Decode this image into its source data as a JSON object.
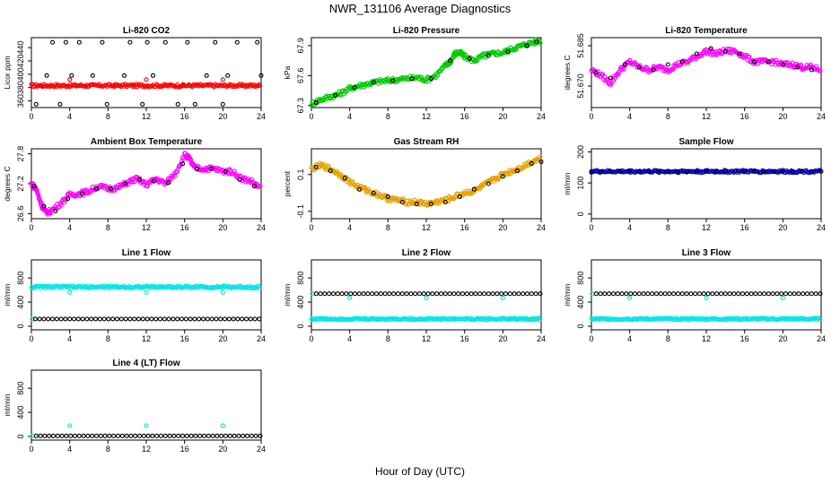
{
  "figure": {
    "title": "NWR_131106  Average Diagnostics",
    "xlabel": "Hour of Day (UTC)"
  },
  "chart_data": [
    {
      "type": "scatter",
      "title": "Li-820 CO2",
      "ylabel": "Licor ppm",
      "xlim": [
        0,
        24
      ],
      "ylim": [
        350,
        455
      ],
      "xticks": [
        "0",
        "4",
        "8",
        "12",
        "16",
        "20",
        "24"
      ],
      "yticks": [
        360,
        380,
        400,
        420,
        440
      ],
      "series": [
        {
          "color": "#000000",
          "x": [
            0.5,
            1.0,
            1.6,
            2.2,
            3.0,
            3.6,
            4.2,
            5.0,
            6.4,
            7.4,
            7.9,
            8.6,
            9.7,
            10.3,
            11.6,
            12.1,
            12.7,
            14.0,
            15.3,
            15.8,
            16.3,
            17.1,
            18.3,
            19.2,
            20.0,
            20.5,
            21.5,
            22.0,
            23.6,
            24.0
          ],
          "y": [
            355,
            383,
            398,
            448,
            355,
            448,
            398,
            448,
            398,
            448,
            355,
            383,
            398,
            448,
            355,
            448,
            398,
            448,
            355,
            383,
            448,
            355,
            398,
            448,
            355,
            398,
            448,
            383,
            448,
            398
          ]
        },
        {
          "color": "#ff0000",
          "x": [
            4.0,
            12.0,
            20.0
          ],
          "y": [
            392,
            392,
            392
          ]
        },
        {
          "color": "#ff0000",
          "x_range": [
            0,
            24
          ],
          "level": 383,
          "band": 2
        }
      ]
    },
    {
      "type": "scatter",
      "title": "Li-820 Pressure",
      "ylabel": "kPa",
      "xlim": [
        0,
        24
      ],
      "ylim": [
        67.28,
        67.98
      ],
      "xticks": [
        "0",
        "4",
        "8",
        "12",
        "16",
        "20",
        "24"
      ],
      "yticks": [
        67.3,
        67.6,
        67.9
      ],
      "series": [
        {
          "color": "#00cc00",
          "x": [
            0,
            1,
            2,
            3,
            4,
            5,
            6,
            7,
            8,
            9,
            10,
            11,
            12,
            13,
            14,
            14.5,
            15,
            15.5,
            16,
            17,
            18,
            19,
            20,
            21,
            22,
            23,
            24
          ],
          "y": [
            67.32,
            67.36,
            67.39,
            67.42,
            67.47,
            67.5,
            67.52,
            67.54,
            67.55,
            67.56,
            67.57,
            67.58,
            67.56,
            67.6,
            67.7,
            67.74,
            67.82,
            67.83,
            67.79,
            67.75,
            67.8,
            67.82,
            67.83,
            67.87,
            67.9,
            67.93,
            67.95
          ]
        },
        {
          "color": "#000000",
          "x": [
            0.5,
            2.5,
            4.5,
            6.5,
            8.5,
            10.5,
            12.5,
            14.5,
            16.5,
            18.5,
            20.5,
            22.5,
            23.5
          ],
          "y": [
            67.33,
            67.4,
            67.48,
            67.53,
            67.55,
            67.57,
            67.57,
            67.75,
            67.77,
            67.8,
            67.84,
            67.9,
            67.94
          ]
        }
      ]
    },
    {
      "type": "scatter",
      "title": "Li-820 Temperature",
      "ylabel": "degrees C",
      "xlim": [
        0,
        24
      ],
      "ylim": [
        51.662,
        51.688
      ],
      "xticks": [
        "0",
        "4",
        "8",
        "12",
        "16",
        "20",
        "24"
      ],
      "yticks": [
        51.67,
        51.685
      ],
      "ytick_labels": [
        "51.670",
        "51.685"
      ],
      "series": [
        {
          "color": "#ff00ff",
          "x": [
            0,
            1,
            2,
            3,
            4,
            5,
            6,
            7,
            8,
            9,
            10,
            11,
            12,
            13,
            14,
            15,
            16,
            17,
            18,
            19,
            20,
            21,
            22,
            23,
            24
          ],
          "y": [
            51.676,
            51.674,
            51.671,
            51.676,
            51.679,
            51.677,
            51.676,
            51.677,
            51.676,
            51.678,
            51.679,
            51.681,
            51.683,
            51.682,
            51.683,
            51.683,
            51.681,
            51.679,
            51.679,
            51.679,
            51.678,
            51.678,
            51.677,
            51.677,
            51.676
          ]
        },
        {
          "color": "#000000",
          "x": [
            0.5,
            2,
            3.5,
            5,
            6.5,
            8,
            9.5,
            11,
            12.5,
            14,
            15.5,
            17,
            18.5,
            20,
            21.5,
            23
          ],
          "y": [
            51.675,
            51.673,
            51.678,
            51.677,
            51.676,
            51.678,
            51.679,
            51.682,
            51.684,
            51.683,
            51.682,
            51.679,
            51.679,
            51.678,
            51.677,
            51.676
          ]
        }
      ]
    },
    {
      "type": "scatter",
      "title": "Ambient Box Temperature",
      "ylabel": "degrees C",
      "xlim": [
        0,
        24
      ],
      "ylim": [
        26.5,
        27.9
      ],
      "xticks": [
        "0",
        "4",
        "8",
        "12",
        "16",
        "20",
        "24"
      ],
      "yticks": [
        26.6,
        27.2,
        27.8
      ],
      "ytick_labels": [
        "26.6",
        "27.2",
        "27.8"
      ],
      "series": [
        {
          "color": "#ff00ff",
          "x": [
            0,
            0.5,
            1,
            1.5,
            2,
            3,
            4,
            5,
            6,
            7,
            8,
            9,
            10,
            11,
            12,
            13,
            14,
            15,
            16,
            16.5,
            17,
            18,
            19,
            20,
            21,
            22,
            23,
            24
          ],
          "y": [
            27.2,
            27.1,
            26.8,
            26.62,
            26.65,
            26.8,
            26.98,
            27.0,
            27.05,
            27.15,
            27.1,
            27.12,
            27.22,
            27.3,
            27.18,
            27.3,
            27.2,
            27.4,
            27.78,
            27.7,
            27.52,
            27.5,
            27.5,
            27.45,
            27.44,
            27.3,
            27.25,
            27.1
          ]
        },
        {
          "color": "#000000",
          "x": [
            0.3,
            1.3,
            2.5,
            3.8,
            5.3,
            6.8,
            8.3,
            9.8,
            11.3,
            12.8,
            14.3,
            15.8,
            17.3,
            18.8,
            20.3,
            21.8,
            23.3
          ],
          "y": [
            27.15,
            26.75,
            26.65,
            26.9,
            27.0,
            27.1,
            27.1,
            27.2,
            27.28,
            27.25,
            27.22,
            27.6,
            27.5,
            27.5,
            27.44,
            27.28,
            27.15
          ]
        }
      ]
    },
    {
      "type": "scatter",
      "title": "Gas Stream RH",
      "ylabel": "percent",
      "xlim": [
        0,
        24
      ],
      "ylim": [
        -0.14,
        0.24
      ],
      "xticks": [
        "0",
        "4",
        "8",
        "12",
        "16",
        "20",
        "24"
      ],
      "yticks": [
        -0.1,
        0.1
      ],
      "ytick_labels": [
        "-0.1",
        "0.1"
      ],
      "series": [
        {
          "color": "#e6a000",
          "x": [
            0,
            1,
            2,
            3,
            4,
            5,
            6,
            7,
            8,
            9,
            10,
            11,
            12,
            13,
            14,
            15,
            16,
            17,
            18,
            19,
            20,
            21,
            22,
            23,
            24
          ],
          "y": [
            0.13,
            0.15,
            0.13,
            0.1,
            0.06,
            0.03,
            0.01,
            -0.01,
            -0.03,
            -0.04,
            -0.05,
            -0.05,
            -0.06,
            -0.05,
            -0.04,
            -0.02,
            0.0,
            0.01,
            0.04,
            0.07,
            0.1,
            0.12,
            0.14,
            0.17,
            0.19
          ]
        },
        {
          "color": "#000000",
          "x": [
            0.5,
            2,
            3.5,
            5,
            6.5,
            8,
            9.5,
            11,
            12.5,
            14,
            15.5,
            17,
            18.5,
            20,
            21.5,
            23,
            24
          ],
          "y": [
            0.14,
            0.12,
            0.08,
            0.02,
            0.0,
            -0.02,
            -0.05,
            -0.06,
            -0.06,
            -0.05,
            -0.02,
            0.02,
            0.05,
            0.09,
            0.12,
            0.16,
            0.17
          ]
        }
      ]
    },
    {
      "type": "scatter",
      "title": "Sample Flow",
      "ylabel": "ml/min",
      "xlim": [
        0,
        24
      ],
      "ylim": [
        -15,
        210
      ],
      "xticks": [
        "0",
        "4",
        "8",
        "12",
        "16",
        "20",
        "24"
      ],
      "yticks": [
        0,
        100,
        200
      ],
      "series": [
        {
          "color": "#0000cc",
          "x_range": [
            0,
            24
          ],
          "level": 137,
          "band": 4
        },
        {
          "color": "#000000",
          "x_range": [
            0,
            24
          ],
          "level": 137,
          "step": 1.0
        }
      ]
    },
    {
      "type": "scatter",
      "title": "Line 1 Flow",
      "ylabel": "ml/min",
      "xlim": [
        0,
        24
      ],
      "ylim": [
        -60,
        1100
      ],
      "xticks": [
        "0",
        "4",
        "8",
        "12",
        "16",
        "20",
        "24"
      ],
      "yticks": [
        0,
        400,
        800
      ],
      "series": [
        {
          "color": "#00e5e5",
          "x_range": [
            0,
            24
          ],
          "level": 650,
          "band": 20
        },
        {
          "color": "#00e5e5",
          "x": [
            0.1,
            4.0,
            12.0,
            20.0
          ],
          "y": [
            120,
            560,
            560,
            560
          ]
        },
        {
          "color": "#000000",
          "x_range": [
            0.4,
            24
          ],
          "level": 120,
          "step": 0.45
        }
      ]
    },
    {
      "type": "scatter",
      "title": "Line 2 Flow",
      "ylabel": "ml/min",
      "xlim": [
        0,
        24
      ],
      "ylim": [
        -60,
        1100
      ],
      "xticks": [
        "0",
        "4",
        "8",
        "12",
        "16",
        "20",
        "24"
      ],
      "yticks": [
        0,
        400,
        800
      ],
      "series": [
        {
          "color": "#00e5e5",
          "x_range": [
            0,
            24
          ],
          "level": 120,
          "band": 15
        },
        {
          "color": "#00e5e5",
          "x": [
            0.1,
            4.0,
            12.0,
            20.0
          ],
          "y": [
            540,
            470,
            470,
            470
          ]
        },
        {
          "color": "#000000",
          "x_range": [
            0.5,
            24
          ],
          "level": 540,
          "step": 0.45
        }
      ]
    },
    {
      "type": "scatter",
      "title": "Line 3 Flow",
      "ylabel": "ml/min",
      "xlim": [
        0,
        24
      ],
      "ylim": [
        -60,
        1100
      ],
      "xticks": [
        "0",
        "4",
        "8",
        "12",
        "16",
        "20",
        "24"
      ],
      "yticks": [
        0,
        400,
        800
      ],
      "series": [
        {
          "color": "#00e5e5",
          "x_range": [
            0,
            24
          ],
          "level": 120,
          "band": 15
        },
        {
          "color": "#00e5e5",
          "x": [
            0.1,
            4.0,
            12.0,
            20.0
          ],
          "y": [
            540,
            470,
            470,
            470
          ]
        },
        {
          "color": "#000000",
          "x_range": [
            0.5,
            24
          ],
          "level": 540,
          "step": 0.45
        }
      ]
    },
    {
      "type": "scatter",
      "title": "Line 4 (LT) Flow",
      "ylabel": "ml/min",
      "xlim": [
        0,
        24
      ],
      "ylim": [
        -60,
        1100
      ],
      "xticks": [
        "0",
        "4",
        "8",
        "12",
        "16",
        "20",
        "24"
      ],
      "yticks": [
        0,
        400,
        800
      ],
      "series": [
        {
          "color": "#00e5e5",
          "x": [
            0.1,
            4.0,
            12.0,
            20.0
          ],
          "y": [
            10,
            180,
            180,
            180
          ]
        },
        {
          "color": "#000000",
          "x_range": [
            0.5,
            24
          ],
          "level": 10,
          "step": 0.45
        }
      ]
    }
  ]
}
